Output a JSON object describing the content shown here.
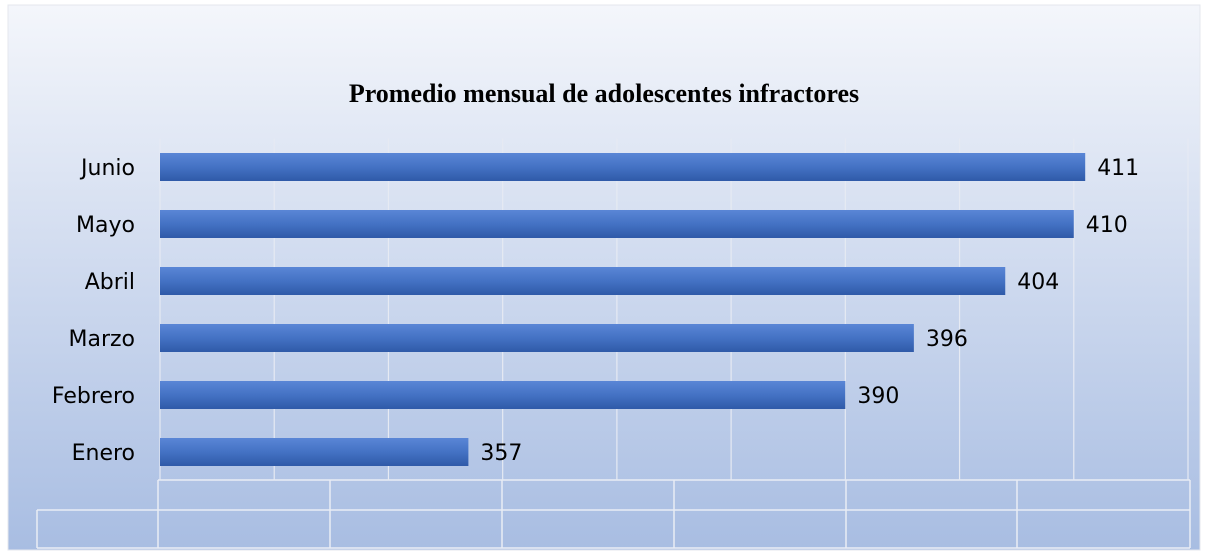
{
  "chart_data": {
    "type": "bar",
    "orientation": "horizontal",
    "title": "Promedio mensual de adolescentes infractores",
    "categories": [
      "Enero",
      "Febrero",
      "Marzo",
      "Abril",
      "Mayo",
      "Junio"
    ],
    "values": [
      357,
      390,
      396,
      404,
      410,
      411
    ],
    "color": "#4472c4",
    "xlim": [
      330,
      420
    ],
    "xticks": [
      330,
      340,
      350,
      360,
      370,
      380,
      390,
      400,
      410,
      420
    ],
    "grid": true
  }
}
